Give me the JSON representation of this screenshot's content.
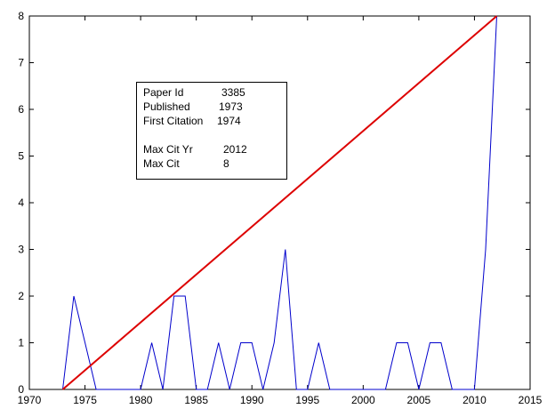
{
  "chart_data": {
    "type": "line",
    "title": "",
    "xlabel": "",
    "ylabel": "",
    "xlim": [
      1970,
      2015
    ],
    "ylim": [
      0,
      8
    ],
    "x_ticks": [
      1970,
      1975,
      1980,
      1985,
      1990,
      1995,
      2000,
      2005,
      2010,
      2015
    ],
    "y_ticks": [
      0,
      1,
      2,
      3,
      4,
      5,
      6,
      7,
      8
    ],
    "grid": false,
    "legend": "none",
    "series": [
      {
        "color": "#0000cc",
        "x": [
          1973,
          1974,
          1975,
          1976,
          1977,
          1978,
          1979,
          1980,
          1981,
          1982,
          1983,
          1984,
          1985,
          1986,
          1987,
          1988,
          1989,
          1990,
          1991,
          1992,
          1993,
          1994,
          1995,
          1996,
          1997,
          1998,
          1999,
          2000,
          2001,
          2002,
          2003,
          2004,
          2005,
          2006,
          2007,
          2008,
          2009,
          2010,
          2011,
          2012
        ],
        "y": [
          0,
          2,
          1,
          0,
          0,
          0,
          0,
          0,
          1,
          0,
          2,
          2,
          0,
          0,
          1,
          0,
          1,
          1,
          0,
          1,
          3,
          0,
          0,
          1,
          0,
          0,
          0,
          0,
          0,
          0,
          1,
          1,
          0,
          1,
          1,
          0,
          0,
          0,
          3,
          8
        ]
      },
      {
        "color": "#dd0000",
        "x": [
          1973,
          2012
        ],
        "y": [
          0,
          8
        ]
      }
    ],
    "annotation": {
      "rows": [
        {
          "label": "Paper Id",
          "value": "3385"
        },
        {
          "label": "Published",
          "value": "1973"
        },
        {
          "label": "First Citation",
          "value": "1974"
        },
        {
          "label": "Max Cit Yr",
          "value": "2012"
        },
        {
          "label": "Max Cit",
          "value": "8"
        }
      ]
    }
  }
}
